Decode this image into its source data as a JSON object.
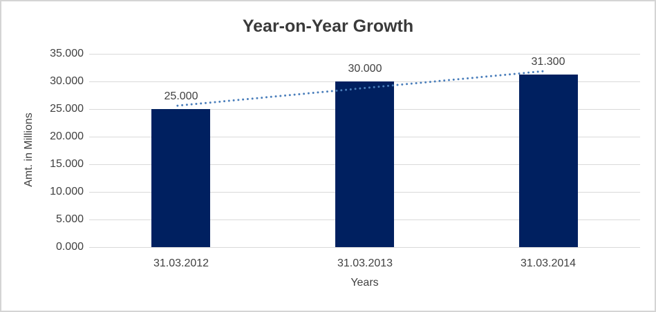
{
  "chart": {
    "title": "Year-on-Year Growth",
    "x_axis_title": "Years",
    "y_axis_title": "Amt. in Millions"
  },
  "chart_data": {
    "type": "bar",
    "title": "Year-on-Year Growth",
    "xlabel": "Years",
    "ylabel": "Amt. in Millions",
    "categories": [
      "31.03.2012",
      "31.03.2013",
      "31.03.2014"
    ],
    "values": [
      25.0,
      30.0,
      31.3
    ],
    "data_labels": [
      "25.000",
      "30.000",
      "31.300"
    ],
    "ylim": [
      0,
      35
    ],
    "y_tick_step": 5,
    "y_tick_labels": [
      "0.000",
      "5.000",
      "10.000",
      "15.000",
      "20.000",
      "25.000",
      "30.000",
      "35.000"
    ],
    "grid": true,
    "legend": "none",
    "bar_color": "#002060",
    "gridline_color": "#d9d9d9",
    "text_color": "#404040",
    "trendline": {
      "type": "linear",
      "style": "dotted",
      "color": "#4a7ebb"
    }
  }
}
